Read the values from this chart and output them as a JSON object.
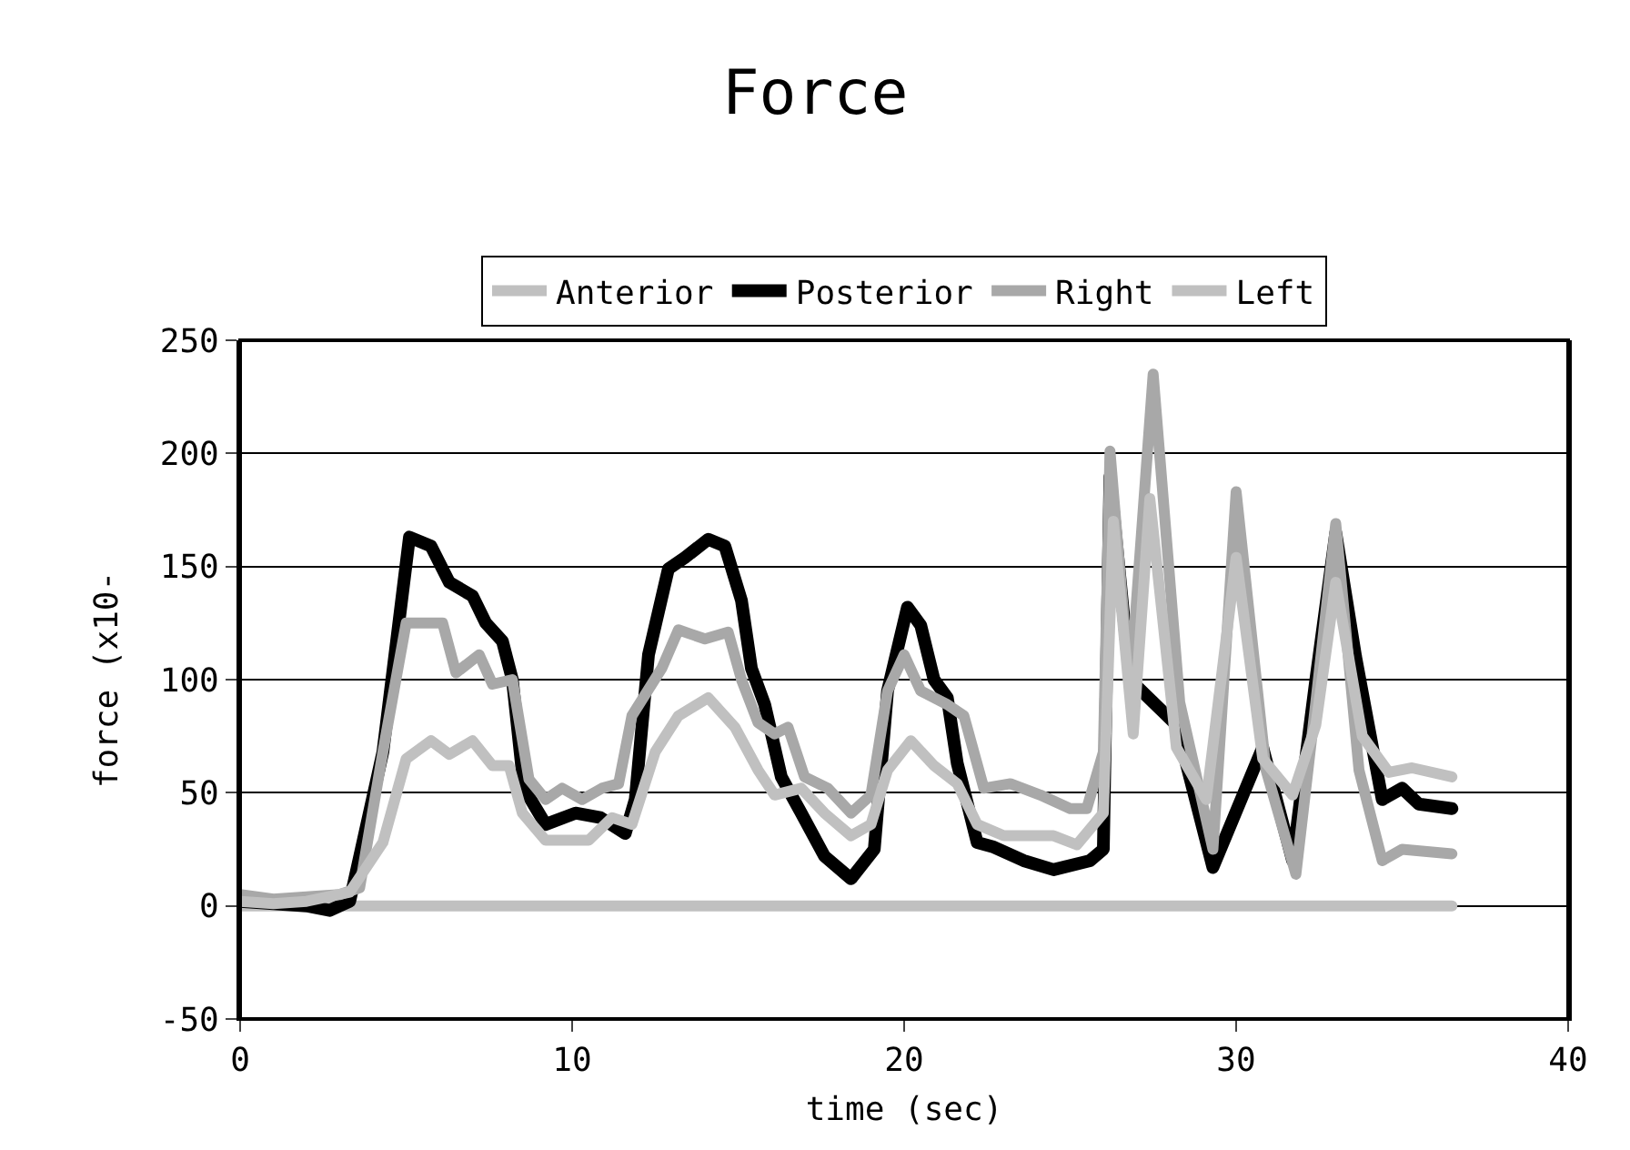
{
  "chart_data": {
    "type": "line",
    "title": "Force",
    "xlabel": "time (sec)",
    "ylabel": "force (x10-",
    "xlim": [
      0,
      40
    ],
    "xticks": [
      0,
      10,
      20,
      30,
      40
    ],
    "ylim": [
      -50,
      250
    ],
    "yticks": [
      -50,
      0,
      50,
      100,
      150,
      200,
      250
    ],
    "grid": "y",
    "legend": "top",
    "marker": "none",
    "line_style": "solid",
    "series": [
      {
        "name": "Anterior",
        "color": "#c0c0c0",
        "x": [
          0,
          36.5
        ],
        "values": [
          0,
          0
        ]
      },
      {
        "name": "Posterior",
        "color": "#000000",
        "x": [
          0,
          1,
          2,
          2.7,
          3.3,
          4.3,
          5.1,
          5.75,
          6.3,
          7.0,
          7.4,
          7.9,
          8.2,
          8.55,
          9.2,
          10.1,
          10.85,
          11.6,
          11.9,
          12.3,
          12.9,
          13.4,
          14.1,
          14.6,
          15.1,
          15.4,
          15.8,
          16.3,
          16.9,
          17.6,
          18.4,
          19.1,
          19.5,
          20.1,
          20.5,
          20.9,
          21.3,
          21.6,
          22.2,
          22.7,
          23.6,
          24.5,
          25.6,
          26.0,
          26.2,
          26.8,
          27.5,
          28.2,
          29.3,
          30.0,
          30.8,
          31.7,
          32.4,
          33.0,
          33.6,
          34.4,
          35.0,
          35.5,
          36.5
        ],
        "values": [
          2,
          1,
          0,
          -2,
          2,
          68,
          163,
          159,
          143,
          137,
          125,
          117,
          100,
          52,
          36,
          41,
          39,
          32,
          47,
          111,
          149,
          154,
          162,
          159,
          135,
          105,
          89,
          57,
          41,
          22,
          12,
          25,
          95,
          132,
          124,
          100,
          92,
          63,
          28,
          26,
          20,
          16,
          20,
          25,
          190,
          100,
          null,
          80,
          17,
          null,
          70,
          20,
          100,
          165,
          110,
          47,
          52,
          45,
          43
        ]
      },
      {
        "name": "Right",
        "color": "#a8a8a8",
        "x": [
          0,
          1,
          2,
          3,
          3.6,
          4.3,
          5.0,
          6.1,
          6.5,
          7.2,
          7.6,
          8.2,
          8.7,
          9.2,
          9.7,
          10.3,
          10.9,
          11.4,
          11.8,
          12.7,
          13.2,
          14.0,
          14.7,
          15.1,
          15.6,
          16.1,
          16.5,
          17.0,
          17.7,
          18.4,
          19.0,
          19.5,
          20.0,
          20.5,
          21.3,
          21.8,
          22.4,
          23.2,
          24.1,
          25.0,
          25.5,
          26.0,
          26.2,
          26.8,
          27.5,
          28.3,
          29.3,
          30.0,
          30.9,
          31.8,
          32.4,
          33.0,
          33.7,
          34.4,
          35.0,
          36.5
        ],
        "values": [
          5,
          3,
          4,
          5,
          8,
          68,
          125,
          125,
          103,
          111,
          98,
          100,
          56,
          47,
          52,
          47,
          52,
          54,
          84,
          105,
          122,
          118,
          121,
          100,
          81,
          76,
          79,
          57,
          52,
          41,
          49,
          95,
          111,
          95,
          89,
          84,
          52,
          54,
          49,
          43,
          43,
          68,
          201,
          95,
          235,
          90,
          25,
          183,
          60,
          14,
          90,
          169,
          60,
          20,
          25,
          23
        ]
      },
      {
        "name": "Left",
        "color": "#c0c0c0",
        "x": [
          0,
          1,
          2,
          3.3,
          4.3,
          5.0,
          5.75,
          6.3,
          7.0,
          7.6,
          8.1,
          8.5,
          9.2,
          10.5,
          11.2,
          11.8,
          12.5,
          13.2,
          14.1,
          14.9,
          15.6,
          16.1,
          16.9,
          17.6,
          18.4,
          19.0,
          19.5,
          20.2,
          20.9,
          21.6,
          22.2,
          23.0,
          24.5,
          25.2,
          26.0,
          26.3,
          26.9,
          27.4,
          28.2,
          29.1,
          30.0,
          30.8,
          31.7,
          32.4,
          33.0,
          33.8,
          34.6,
          35.3,
          36.5
        ],
        "values": [
          2,
          1,
          2,
          6,
          28,
          65,
          73,
          67,
          73,
          62,
          62,
          41,
          29,
          29,
          39,
          36,
          68,
          84,
          92,
          79,
          60,
          49,
          52,
          41,
          31,
          36,
          60,
          73,
          62,
          54,
          36,
          31,
          31,
          27,
          41,
          170,
          76,
          180,
          70,
          47,
          154,
          65,
          49,
          80,
          143,
          75,
          59,
          61,
          57
        ]
      }
    ]
  }
}
